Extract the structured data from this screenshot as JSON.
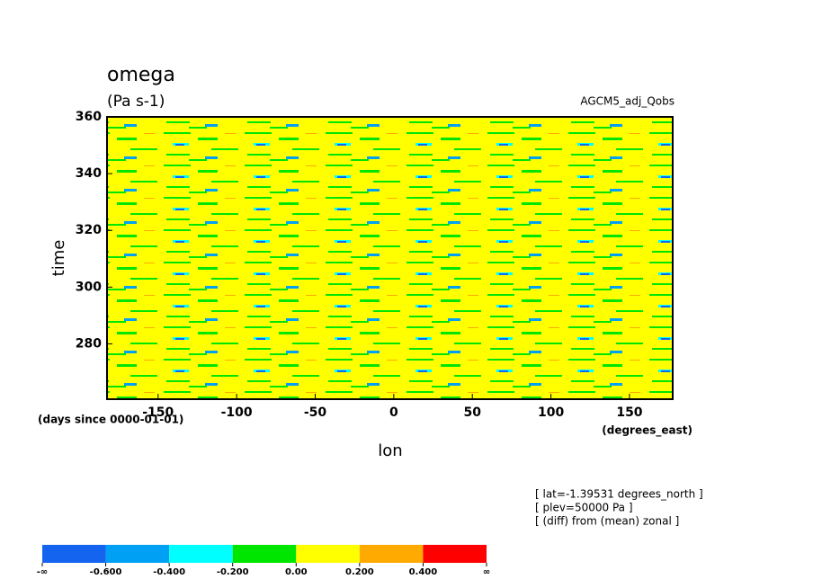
{
  "chart_data": {
    "type": "heatmap",
    "title": "omega",
    "subtitle": "(Pa s-1)",
    "model": "AGCM5_adj_Qobs",
    "y_label": "time",
    "x_label": "lon",
    "y_units": "(days since 0000-01-01)",
    "x_units": "(degrees_east)",
    "xlim": [
      -182.5,
      177.5
    ],
    "xticks": [
      -150,
      -100,
      -50,
      0,
      50,
      100,
      150
    ],
    "ylim": [
      260.5,
      360
    ],
    "yticks": [
      280,
      300,
      320,
      340,
      360
    ],
    "notes": [
      "[ lat=-1.39531 degrees_north ]",
      "[ plev=50000 Pa ]",
      "[ (diff) from (mean) zonal ]"
    ],
    "colorbar": {
      "colors": [
        "#1464f0",
        "#00a0f5",
        "#00ffff",
        "#00e600",
        "#ffff00",
        "#ffaa00",
        "#ff0000"
      ],
      "labels": [
        "-∞",
        "-0.600",
        "-0.400",
        "-0.200",
        "0.00",
        "0.200",
        "0.400",
        "∞"
      ]
    }
  }
}
